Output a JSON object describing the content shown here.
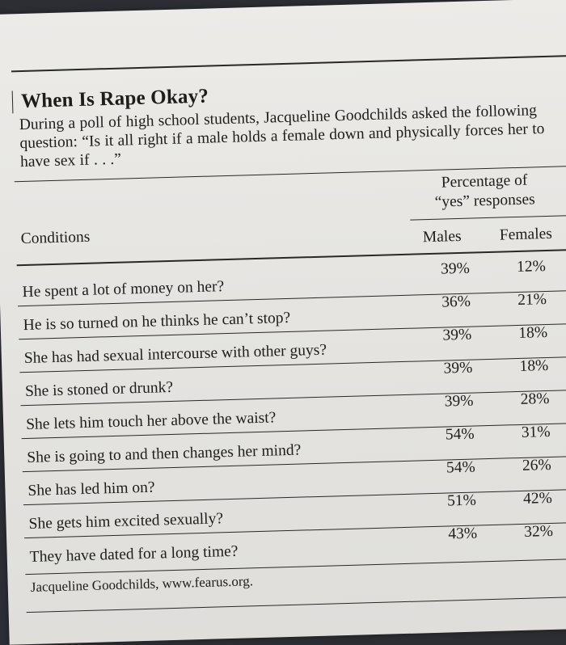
{
  "title": "When Is Rape Okay?",
  "intro": "During a poll of high school students, Jacqueline Goodchilds asked the following question: “Is it all right if a male holds a female down and physically forces her to have sex if . . .”",
  "table": {
    "percent_header": "Percentage of “yes” responses",
    "conditions_header": "Conditions",
    "males_header": "Males",
    "females_header": "Females",
    "rows": [
      {
        "condition": "He spent a lot of money on her?",
        "males": "39%",
        "females": "12%"
      },
      {
        "condition": "He is so turned on he thinks he can’t stop?",
        "males": "36%",
        "females": "21%"
      },
      {
        "condition": "She has had sexual intercourse with other guys?",
        "males": "39%",
        "females": "18%"
      },
      {
        "condition": "She is stoned or drunk?",
        "males": "39%",
        "females": "18%"
      },
      {
        "condition": "She lets him touch her above the waist?",
        "males": "39%",
        "females": "28%"
      },
      {
        "condition": "She is going to and then changes her mind?",
        "males": "54%",
        "females": "31%"
      },
      {
        "condition": "She has led him on?",
        "males": "54%",
        "females": "26%"
      },
      {
        "condition": "She gets him excited sexually?",
        "males": "51%",
        "females": "42%"
      },
      {
        "condition": "They have dated for a long time?",
        "males": "43%",
        "females": "32%"
      }
    ]
  },
  "source": "Jacqueline Goodchilds, www.fearus.org."
}
